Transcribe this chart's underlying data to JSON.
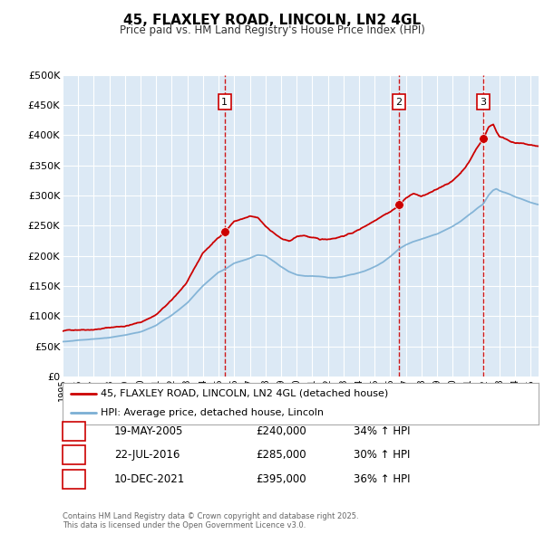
{
  "title": "45, FLAXLEY ROAD, LINCOLN, LN2 4GL",
  "subtitle": "Price paid vs. HM Land Registry's House Price Index (HPI)",
  "ylim": [
    0,
    500000
  ],
  "yticks": [
    0,
    50000,
    100000,
    150000,
    200000,
    250000,
    300000,
    350000,
    400000,
    450000,
    500000
  ],
  "ytick_labels": [
    "£0",
    "£50K",
    "£100K",
    "£150K",
    "£200K",
    "£250K",
    "£300K",
    "£350K",
    "£400K",
    "£450K",
    "£500K"
  ],
  "bg_color": "#ffffff",
  "plot_bg_color": "#dce9f5",
  "grid_color": "#ffffff",
  "red_line_color": "#cc0000",
  "blue_line_color": "#7bafd4",
  "vline_color": "#cc0000",
  "marker1_x": 2005.38,
  "marker2_x": 2016.55,
  "marker3_x": 2021.95,
  "marker1_y": 240000,
  "marker2_y": 285000,
  "marker3_y": 395000,
  "xmin": 1995,
  "xmax": 2025.5,
  "legend_entry1": "45, FLAXLEY ROAD, LINCOLN, LN2 4GL (detached house)",
  "legend_entry2": "HPI: Average price, detached house, Lincoln",
  "sale1_label": "1",
  "sale1_date": "19-MAY-2005",
  "sale1_price": "£240,000",
  "sale1_hpi": "34% ↑ HPI",
  "sale2_label": "2",
  "sale2_date": "22-JUL-2016",
  "sale2_price": "£285,000",
  "sale2_hpi": "30% ↑ HPI",
  "sale3_label": "3",
  "sale3_date": "10-DEC-2021",
  "sale3_price": "£395,000",
  "sale3_hpi": "36% ↑ HPI",
  "footer": "Contains HM Land Registry data © Crown copyright and database right 2025.\nThis data is licensed under the Open Government Licence v3.0.",
  "red_waypoints": [
    [
      1995.0,
      75000
    ],
    [
      1996.0,
      78000
    ],
    [
      1997.0,
      80000
    ],
    [
      1998.0,
      83000
    ],
    [
      1999.0,
      86000
    ],
    [
      2000.0,
      92000
    ],
    [
      2001.0,
      105000
    ],
    [
      2002.0,
      128000
    ],
    [
      2003.0,
      158000
    ],
    [
      2004.0,
      205000
    ],
    [
      2005.38,
      240000
    ],
    [
      2006.0,
      258000
    ],
    [
      2007.0,
      265000
    ],
    [
      2007.5,
      262000
    ],
    [
      2008.0,
      248000
    ],
    [
      2008.5,
      238000
    ],
    [
      2009.0,
      228000
    ],
    [
      2009.5,
      222000
    ],
    [
      2010.0,
      230000
    ],
    [
      2010.5,
      232000
    ],
    [
      2011.0,
      228000
    ],
    [
      2011.5,
      224000
    ],
    [
      2012.0,
      225000
    ],
    [
      2012.5,
      228000
    ],
    [
      2013.0,
      232000
    ],
    [
      2013.5,
      236000
    ],
    [
      2014.0,
      242000
    ],
    [
      2014.5,
      250000
    ],
    [
      2015.0,
      258000
    ],
    [
      2015.5,
      268000
    ],
    [
      2016.0,
      275000
    ],
    [
      2016.55,
      285000
    ],
    [
      2017.0,
      298000
    ],
    [
      2017.5,
      305000
    ],
    [
      2018.0,
      300000
    ],
    [
      2018.5,
      305000
    ],
    [
      2019.0,
      310000
    ],
    [
      2019.5,
      318000
    ],
    [
      2020.0,
      325000
    ],
    [
      2020.5,
      338000
    ],
    [
      2021.0,
      355000
    ],
    [
      2021.5,
      378000
    ],
    [
      2021.95,
      395000
    ],
    [
      2022.3,
      415000
    ],
    [
      2022.6,
      420000
    ],
    [
      2022.8,
      408000
    ],
    [
      2023.0,
      400000
    ],
    [
      2023.5,
      395000
    ],
    [
      2024.0,
      390000
    ],
    [
      2024.5,
      388000
    ],
    [
      2025.0,
      385000
    ],
    [
      2025.5,
      383000
    ]
  ],
  "blue_waypoints": [
    [
      1995.0,
      58000
    ],
    [
      1996.0,
      60000
    ],
    [
      1997.0,
      62000
    ],
    [
      1998.0,
      64000
    ],
    [
      1999.0,
      67000
    ],
    [
      2000.0,
      72000
    ],
    [
      2001.0,
      83000
    ],
    [
      2002.0,
      100000
    ],
    [
      2003.0,
      120000
    ],
    [
      2004.0,
      148000
    ],
    [
      2005.0,
      170000
    ],
    [
      2005.38,
      175000
    ],
    [
      2006.0,
      185000
    ],
    [
      2007.0,
      193000
    ],
    [
      2007.5,
      198000
    ],
    [
      2008.0,
      196000
    ],
    [
      2008.5,
      188000
    ],
    [
      2009.0,
      178000
    ],
    [
      2009.5,
      170000
    ],
    [
      2010.0,
      165000
    ],
    [
      2010.5,
      163000
    ],
    [
      2011.0,
      163000
    ],
    [
      2011.5,
      162000
    ],
    [
      2012.0,
      160000
    ],
    [
      2012.5,
      160000
    ],
    [
      2013.0,
      162000
    ],
    [
      2013.5,
      165000
    ],
    [
      2014.0,
      168000
    ],
    [
      2014.5,
      172000
    ],
    [
      2015.0,
      178000
    ],
    [
      2015.5,
      185000
    ],
    [
      2016.0,
      195000
    ],
    [
      2016.55,
      208000
    ],
    [
      2017.0,
      215000
    ],
    [
      2017.5,
      220000
    ],
    [
      2018.0,
      224000
    ],
    [
      2018.5,
      228000
    ],
    [
      2019.0,
      232000
    ],
    [
      2019.5,
      238000
    ],
    [
      2020.0,
      244000
    ],
    [
      2020.5,
      252000
    ],
    [
      2021.0,
      262000
    ],
    [
      2021.5,
      272000
    ],
    [
      2021.95,
      280000
    ],
    [
      2022.3,
      295000
    ],
    [
      2022.6,
      303000
    ],
    [
      2022.8,
      305000
    ],
    [
      2023.0,
      302000
    ],
    [
      2023.5,
      298000
    ],
    [
      2024.0,
      292000
    ],
    [
      2024.5,
      288000
    ],
    [
      2025.0,
      283000
    ],
    [
      2025.5,
      280000
    ]
  ]
}
